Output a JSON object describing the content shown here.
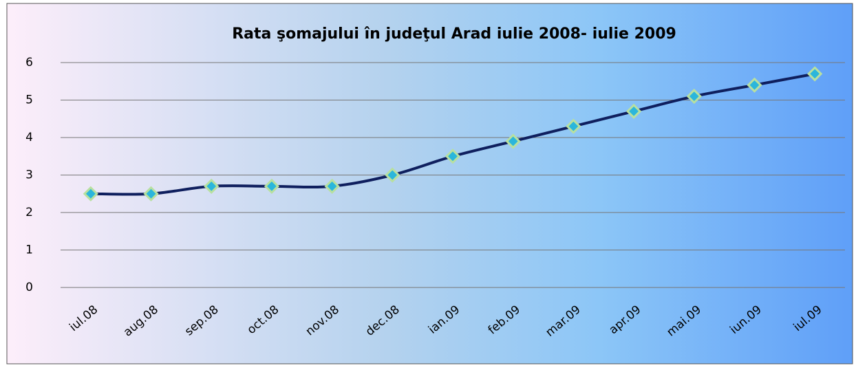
{
  "chart_data": {
    "type": "line",
    "title": "Rata şomajului în judeţul Arad iulie 2008- iulie 2009",
    "categories": [
      "iul.08",
      "aug.08",
      "sep.08",
      "oct.08",
      "nov.08",
      "dec.08",
      "ian.09",
      "feb.09",
      "mar.09",
      "apr.09",
      "mai.09",
      "iun.09",
      "iul.09"
    ],
    "values": [
      2.5,
      2.5,
      2.7,
      2.7,
      2.7,
      3.0,
      3.5,
      3.9,
      4.3,
      4.7,
      5.1,
      5.4,
      5.7
    ],
    "color": "#0f1f5e",
    "marker_color": "#2bb6db",
    "marker_edge_color": "#b8e0a0",
    "ylim": [
      0,
      6
    ],
    "yticks": [
      0,
      1,
      2,
      3,
      4,
      5,
      6
    ],
    "grid": true
  }
}
